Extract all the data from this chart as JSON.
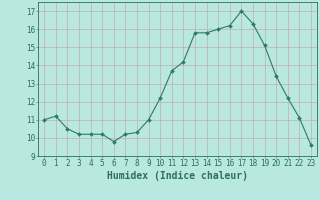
{
  "x": [
    0,
    1,
    2,
    3,
    4,
    5,
    6,
    7,
    8,
    9,
    10,
    11,
    12,
    13,
    14,
    15,
    16,
    17,
    18,
    19,
    20,
    21,
    22,
    23
  ],
  "y": [
    11.0,
    11.2,
    10.5,
    10.2,
    10.2,
    10.2,
    9.8,
    10.2,
    10.3,
    11.0,
    12.2,
    13.7,
    14.2,
    15.8,
    15.8,
    16.0,
    16.2,
    17.0,
    16.3,
    15.1,
    13.4,
    12.2,
    11.1,
    9.6
  ],
  "bg_color": "#b8e8e0",
  "line_color": "#2d7a68",
  "marker_color": "#2d7a68",
  "grid_color_major": "#c8deda",
  "grid_color_minor": "#d8eeea",
  "xlabel": "Humidex (Indice chaleur)",
  "ylim": [
    9,
    17.5
  ],
  "yticks": [
    9,
    10,
    11,
    12,
    13,
    14,
    15,
    16,
    17
  ],
  "xticks": [
    0,
    1,
    2,
    3,
    4,
    5,
    6,
    7,
    8,
    9,
    10,
    11,
    12,
    13,
    14,
    15,
    16,
    17,
    18,
    19,
    20,
    21,
    22,
    23
  ],
  "font_color": "#2d6e5e",
  "tick_fontsize": 5.5,
  "xlabel_fontsize": 7.0
}
